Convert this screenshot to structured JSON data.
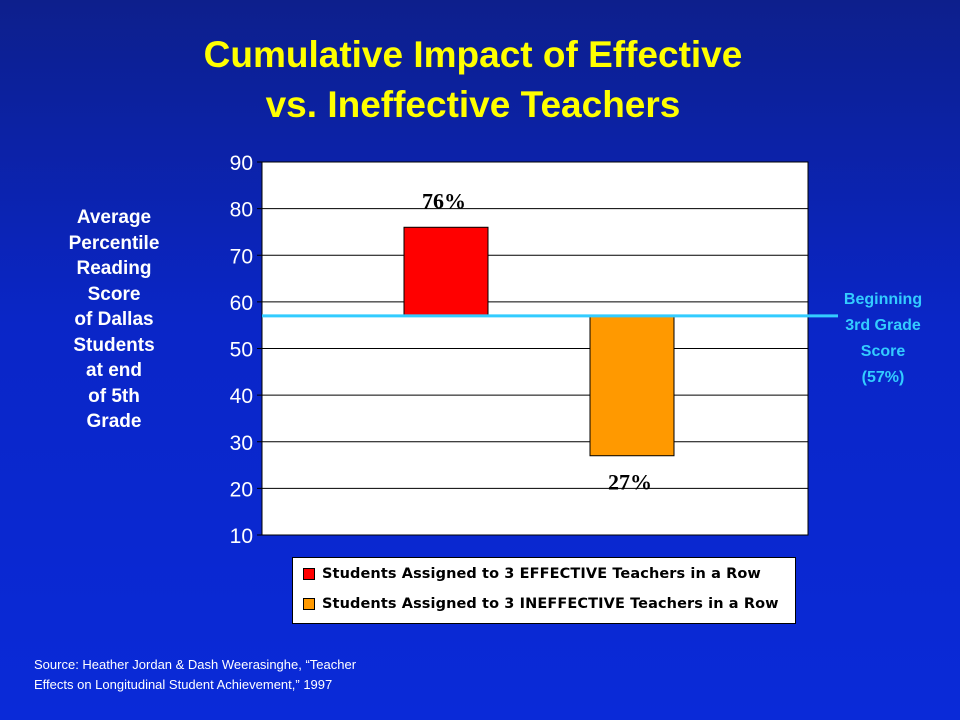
{
  "title_lines": [
    "Cumulative Impact of Effective",
    "vs. Ineffective Teachers"
  ],
  "y_axis_title_lines": [
    "Average",
    "Percentile",
    "Reading",
    "Score",
    "of Dallas",
    "Students",
    "at end",
    "of 5th",
    "Grade"
  ],
  "reference_note_lines": [
    "Beginning",
    "3rd Grade",
    "Score",
    "(57%)"
  ],
  "source_lines": [
    "Source: Heather Jordan & Dash Weerasinghe, “Teacher",
    "Effects on Longitudinal Student Achievement,” 1997"
  ],
  "colors": {
    "background_top": "#0d1f8c",
    "background_bottom": "#0a2ad8",
    "title": "#ffff00",
    "reference_line": "#33ccff",
    "effective_bar": "#ff0000",
    "ineffective_bar": "#ff9900",
    "plot_background": "#ffffff",
    "gridline": "#000000"
  },
  "chart_data": {
    "type": "bar",
    "title": "Cumulative Impact of Effective vs. Ineffective Teachers",
    "ylabel": "Average Percentile Reading Score of Dallas Students at end of 5th Grade",
    "ylim": [
      10,
      90
    ],
    "yticks": [
      10,
      20,
      30,
      40,
      50,
      60,
      70,
      80,
      90
    ],
    "grid": true,
    "baseline": 57,
    "reference_line": {
      "value": 57,
      "label": "Beginning 3rd Grade Score (57%)"
    },
    "legend_position": "bottom",
    "series": [
      {
        "name": "Students Assigned to 3 EFFECTIVE Teachers in a Row",
        "value": 76,
        "data_label": "76%",
        "color": "#ff0000"
      },
      {
        "name": "Students Assigned to 3 INEFFECTIVE Teachers in a Row",
        "value": 27,
        "data_label": "27%",
        "color": "#ff9900"
      }
    ]
  }
}
